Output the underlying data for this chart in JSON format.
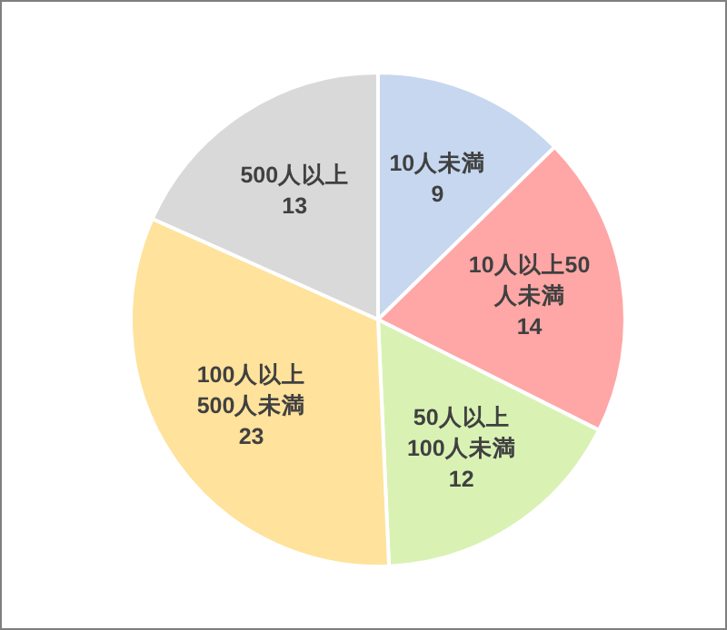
{
  "chart_data": {
    "type": "pie",
    "categories": [
      "10人未満",
      "10人以上50\n人未満",
      "50人以上\n100人未満",
      "100人以上\n500人未満",
      "500人以上"
    ],
    "values": [
      9,
      14,
      12,
      23,
      13
    ],
    "colors": [
      "#c6d7ef",
      "#ffa6a6",
      "#d9f2b4",
      "#ffe29b",
      "#d9d9d9"
    ],
    "data_labels": true
  }
}
